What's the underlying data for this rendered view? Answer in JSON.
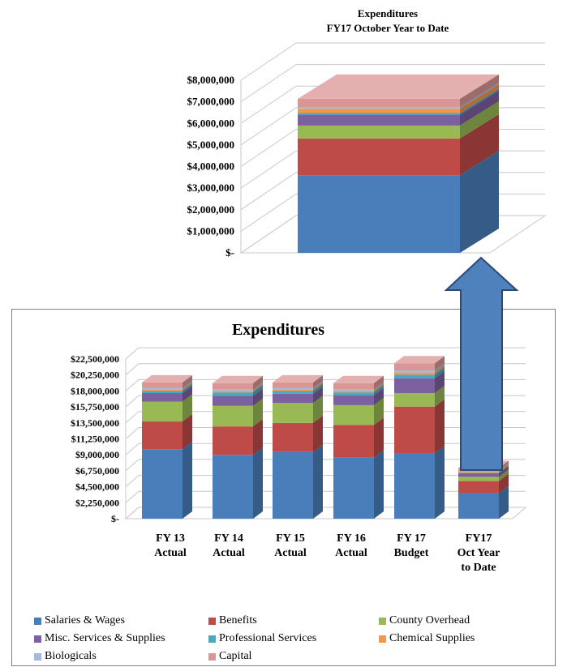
{
  "colors": {
    "salaries": "#4a7ebb",
    "benefits": "#be4b48",
    "county_overhead": "#98b954",
    "misc": "#7d60a0",
    "professional": "#46aac5",
    "chemical": "#f79646",
    "biologicals": "#a6b9dc",
    "capital": "#d99694",
    "arrow_fill": "#4f81bd",
    "arrow_stroke": "#2a4a7a"
  },
  "chart_data": [
    {
      "type": "bar",
      "stacked": true,
      "three_d": true,
      "title": "Expenditures",
      "subtitle": "FY17 October Year to Date",
      "categories": [
        ""
      ],
      "ylim": [
        0,
        8000000
      ],
      "yticks": [
        0,
        1000000,
        2000000,
        3000000,
        4000000,
        5000000,
        6000000,
        7000000,
        8000000
      ],
      "ytick_labels": [
        "$-",
        "$1,000,000",
        "$2,000,000",
        "$3,000,000",
        "$4,000,000",
        "$5,000,000",
        "$6,000,000",
        "$7,000,000",
        "$8,000,000"
      ],
      "grid": true,
      "series": [
        {
          "name": "Salaries & Wages",
          "color_key": "salaries",
          "values": [
            3600000
          ]
        },
        {
          "name": "Benefits",
          "color_key": "benefits",
          "values": [
            1700000
          ]
        },
        {
          "name": "County Overhead",
          "color_key": "county_overhead",
          "values": [
            600000
          ]
        },
        {
          "name": "Misc. Services & Supplies",
          "color_key": "misc",
          "values": [
            500000
          ]
        },
        {
          "name": "Professional Services",
          "color_key": "professional",
          "values": [
            80000
          ]
        },
        {
          "name": "Chemical Supplies",
          "color_key": "chemical",
          "values": [
            200000
          ]
        },
        {
          "name": "Biologicals",
          "color_key": "biologicals",
          "values": [
            80000
          ]
        },
        {
          "name": "Capital",
          "color_key": "capital",
          "values": [
            380000
          ]
        }
      ]
    },
    {
      "type": "bar",
      "stacked": true,
      "three_d": true,
      "title": "Expenditures",
      "categories": [
        "FY 13 Actual",
        "FY 14 Actual",
        "FY 15 Actual",
        "FY 16 Actual",
        "FY 17 Budget",
        "FY17 Oct Year to Date"
      ],
      "category_lines": [
        [
          "FY 13",
          "Actual"
        ],
        [
          "FY 14",
          "Actual"
        ],
        [
          "FY 15",
          "Actual"
        ],
        [
          "FY 16",
          "Actual"
        ],
        [
          "FY 17",
          "Budget"
        ],
        [
          "FY17",
          "Oct Year",
          "to Date"
        ]
      ],
      "ylim": [
        0,
        22500000
      ],
      "yticks": [
        0,
        2250000,
        4500000,
        6750000,
        9000000,
        11250000,
        13500000,
        15750000,
        18000000,
        20250000,
        22500000
      ],
      "ytick_labels": [
        "$-",
        "$2,250,000",
        "$4,500,000",
        "$6,750,000",
        "$9,000,000",
        "$11,250,000",
        "$13,500,000",
        "$15,750,000",
        "$18,000,000",
        "$20,250,000",
        "$22,500,000"
      ],
      "grid": true,
      "legend_position": "bottom",
      "series": [
        {
          "name": "Salaries & Wages",
          "color_key": "salaries",
          "values": [
            9800000,
            9000000,
            9400000,
            8600000,
            9200000,
            3600000
          ]
        },
        {
          "name": "Benefits",
          "color_key": "benefits",
          "values": [
            3900000,
            4000000,
            4100000,
            4600000,
            6600000,
            1700000
          ]
        },
        {
          "name": "County Overhead",
          "color_key": "county_overhead",
          "values": [
            2800000,
            2900000,
            2800000,
            2800000,
            1900000,
            600000
          ]
        },
        {
          "name": "Misc. Services & Supplies",
          "color_key": "misc",
          "values": [
            1200000,
            1400000,
            1300000,
            1400000,
            2100000,
            500000
          ]
        },
        {
          "name": "Professional Services",
          "color_key": "professional",
          "values": [
            300000,
            500000,
            400000,
            400000,
            500000,
            80000
          ]
        },
        {
          "name": "Chemical Supplies",
          "color_key": "chemical",
          "values": [
            200000,
            200000,
            200000,
            200000,
            300000,
            200000
          ]
        },
        {
          "name": "Biologicals",
          "color_key": "biologicals",
          "values": [
            200000,
            200000,
            200000,
            200000,
            300000,
            80000
          ]
        },
        {
          "name": "Capital",
          "color_key": "capital",
          "values": [
            800000,
            900000,
            800000,
            900000,
            1000000,
            380000
          ]
        }
      ]
    }
  ]
}
